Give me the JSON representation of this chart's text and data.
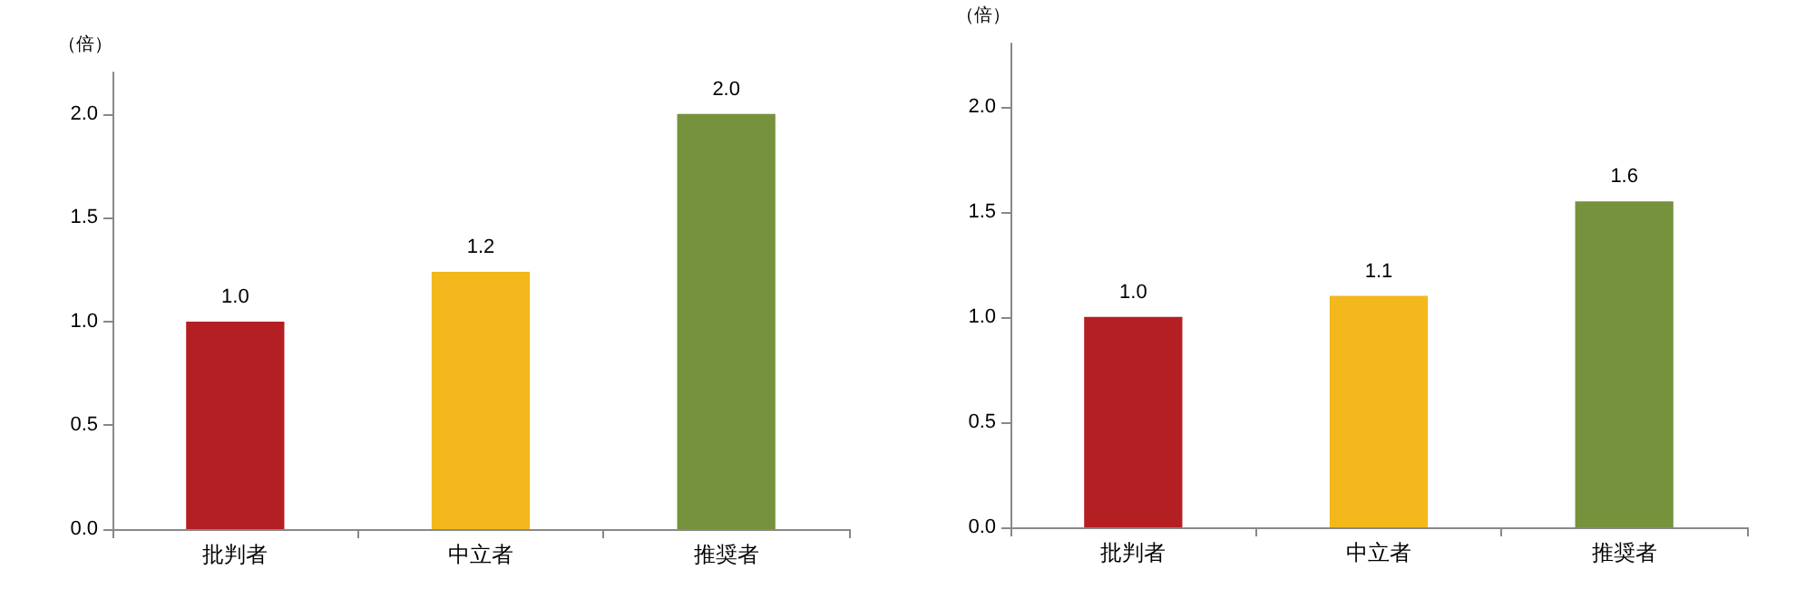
{
  "chart_data": [
    {
      "type": "bar",
      "ylabel": "（倍）",
      "categories": [
        "批判者",
        "中立者",
        "推奨者"
      ],
      "values": [
        1.0,
        1.24,
        2.0
      ],
      "value_labels": [
        "1.0",
        "1.2",
        "2.0"
      ],
      "colors": [
        "#b41f24",
        "#f2b81c",
        "#76923c"
      ],
      "ylim": [
        0,
        2.2
      ],
      "yticks": [
        {
          "value": 0,
          "label": "0.0"
        },
        {
          "value": 0.5,
          "label": "0.5"
        },
        {
          "value": 1,
          "label": "1.0"
        },
        {
          "value": 1.5,
          "label": "1.5"
        },
        {
          "value": 2,
          "label": "2.0"
        }
      ],
      "grid": false
    },
    {
      "type": "bar",
      "ylabel": "（倍）",
      "categories": [
        "批判者",
        "中立者",
        "推奨者"
      ],
      "values": [
        1.0,
        1.1,
        1.55
      ],
      "value_labels": [
        "1.0",
        "1.1",
        "1.6"
      ],
      "colors": [
        "#b41f24",
        "#f2b81c",
        "#76923c"
      ],
      "ylim": [
        0,
        2.3
      ],
      "yticks": [
        {
          "value": 0,
          "label": "0.0"
        },
        {
          "value": 0.5,
          "label": "0.5"
        },
        {
          "value": 1,
          "label": "1.0"
        },
        {
          "value": 1.5,
          "label": "1.5"
        },
        {
          "value": 2,
          "label": "2.0"
        }
      ],
      "grid": false
    }
  ]
}
